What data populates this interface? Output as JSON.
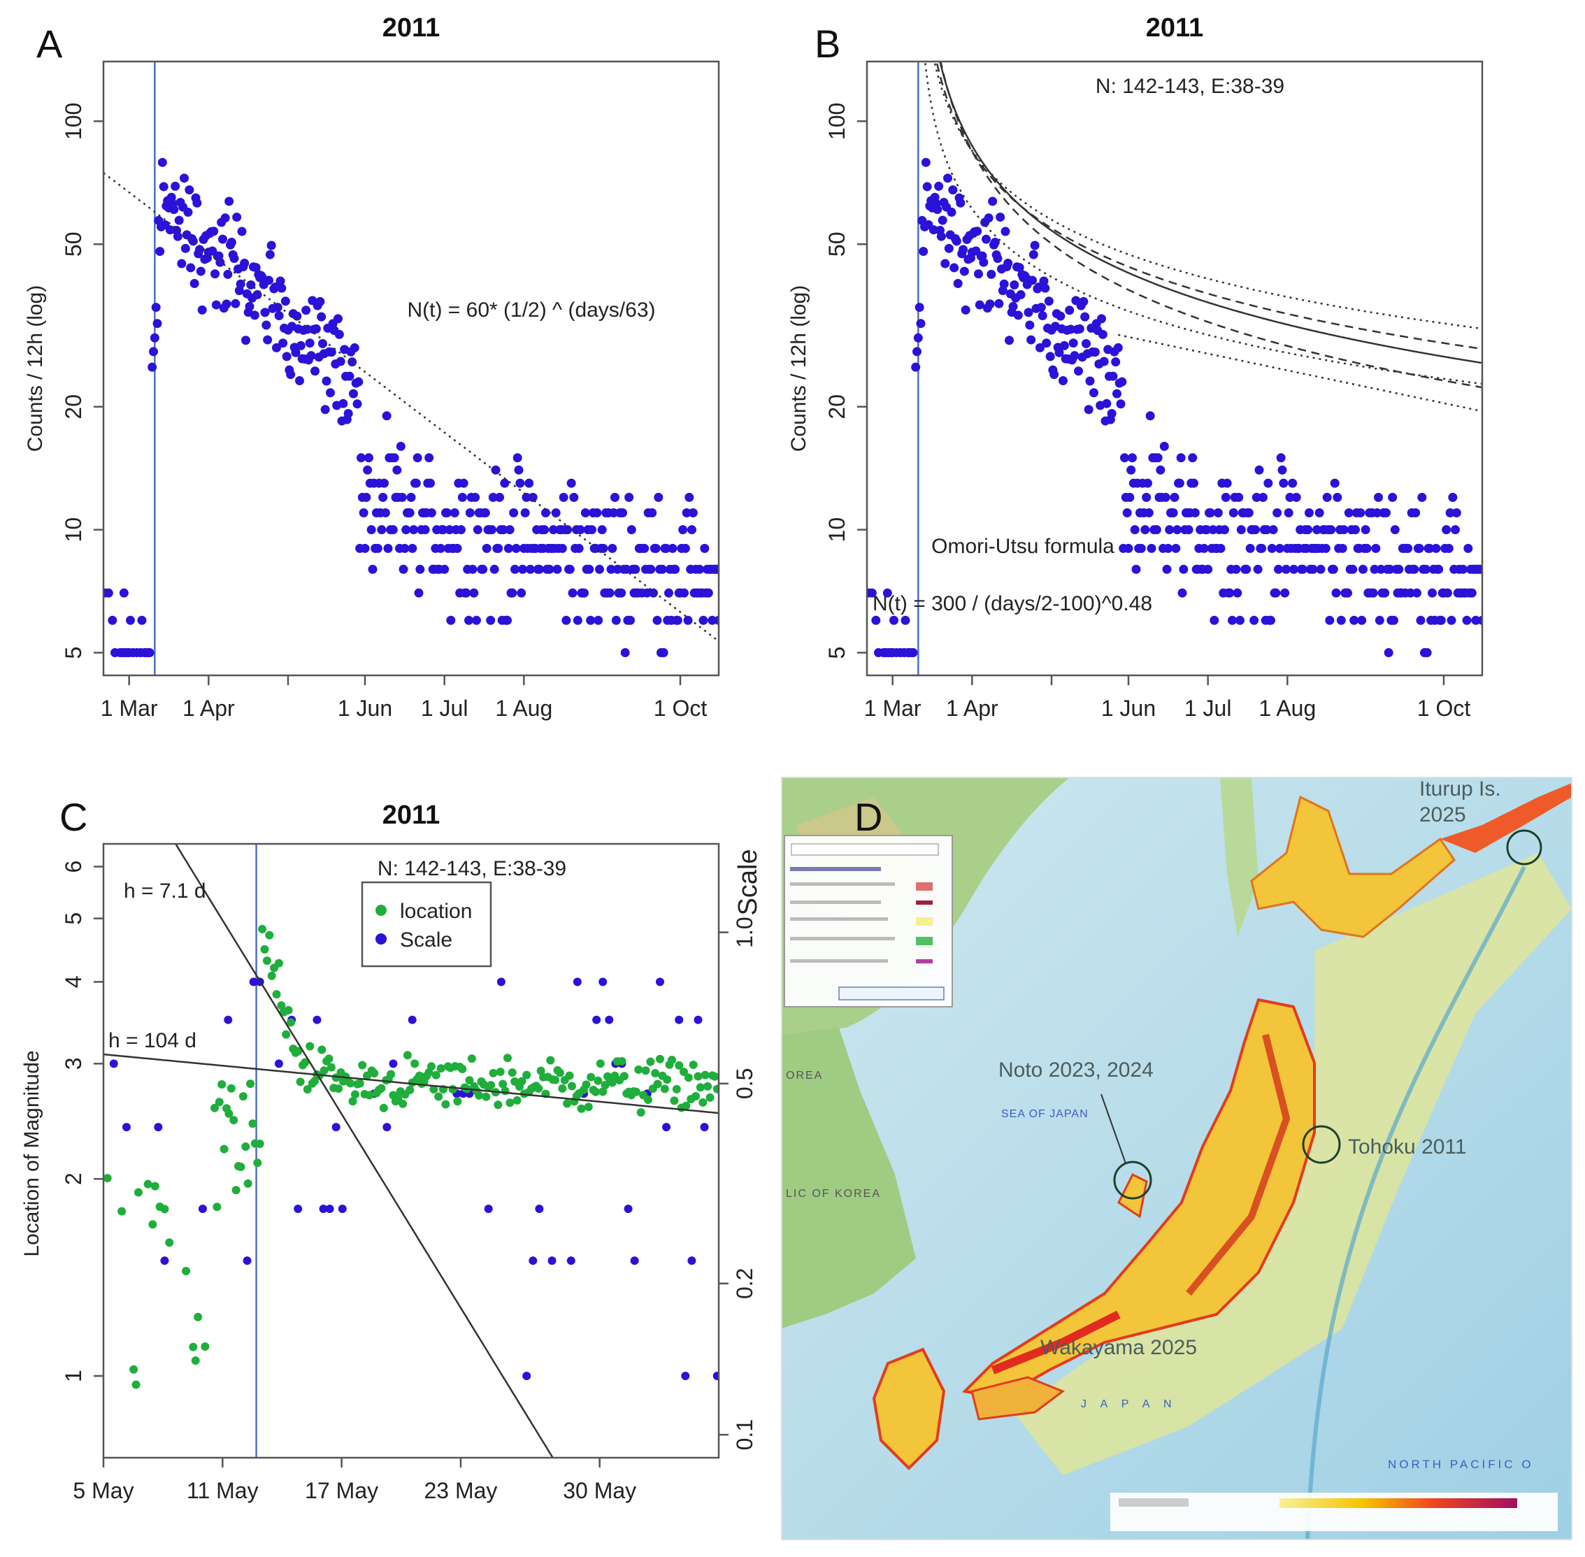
{
  "figure": {
    "panel_labels": [
      "A",
      "B",
      "C",
      "D"
    ],
    "colors": {
      "scale_points": "#2a12d8",
      "location_points": "#1fae3b",
      "marker_line": "#4a6fc4",
      "fit_line": "#333333"
    }
  },
  "chart_data": [
    {
      "id": "A",
      "type": "scatter",
      "title": "2011",
      "ylabel": "Counts / 12h (log)",
      "yscale": "log",
      "ylim": [
        4.4,
        140
      ],
      "yticks": [
        "5",
        "10",
        "20",
        "50",
        "100"
      ],
      "xlim": [
        40,
        280
      ],
      "xticks": [
        {
          "day": 50,
          "label": "1 Mar"
        },
        {
          "day": 81,
          "label": "1 Apr"
        },
        {
          "day": 142,
          "label": "1 Jun"
        },
        {
          "day": 173,
          "label": "1 Jul"
        },
        {
          "day": 204,
          "label": "1 Aug"
        },
        {
          "day": 265,
          "label": "1 Oct"
        }
      ],
      "event_day": 60,
      "annotation": "N(t) = 60* (1/2) ^ (days/63)",
      "fit": {
        "kind": "halflife",
        "n0": 60,
        "half_life_days": 63,
        "start_day": 60
      },
      "series": [
        {
          "name": "counts per 12h",
          "model": "decay-with-noise",
          "start_day": 40,
          "end_day": 280,
          "step_days": 0.5
        }
      ]
    },
    {
      "id": "B",
      "type": "scatter",
      "title": "2011",
      "subtitle": "N: 142-143, E:38-39",
      "ylabel": "Counts / 12h (log)",
      "yscale": "log",
      "ylim": [
        4.4,
        140
      ],
      "yticks": [
        "5",
        "10",
        "20",
        "50",
        "100"
      ],
      "xlim": [
        40,
        280
      ],
      "xticks": [
        {
          "day": 50,
          "label": "1 Mar"
        },
        {
          "day": 81,
          "label": "1 Apr"
        },
        {
          "day": 142,
          "label": "1 Jun"
        },
        {
          "day": 173,
          "label": "1 Jul"
        },
        {
          "day": 204,
          "label": "1 Aug"
        },
        {
          "day": 265,
          "label": "1 Oct"
        }
      ],
      "event_day": 60,
      "annotations": [
        "Omori-Utsu formula",
        "N(t) = 300 / (days/2-100)^0.48"
      ],
      "curves": [
        {
          "style": "solid",
          "k": 24,
          "c": 2,
          "p": 0.55
        },
        {
          "style": "dashed",
          "k": 30,
          "c": 1.5,
          "p": 0.6
        },
        {
          "style": "dashed",
          "k": 18,
          "c": 2.5,
          "p": 0.5
        },
        {
          "style": "dotted",
          "k": 14,
          "c": 3,
          "p": 0.45
        },
        {
          "style": "dotted",
          "k": 10,
          "c": 3,
          "p": 0.45
        },
        {
          "style": "dotted-flat",
          "from": [
            138,
            30
          ],
          "to": [
            280,
            19.5
          ]
        }
      ]
    },
    {
      "id": "C",
      "type": "scatter",
      "title": "2011",
      "subtitle": "N: 142-143, E:38-39",
      "ylabel_left": "Location of Magnitude",
      "ylabel_right": "Scale",
      "yscale": "log",
      "ylim_left": [
        0.75,
        6.5
      ],
      "yticks_left": [
        "1",
        "2",
        "3",
        "4",
        "5",
        "6"
      ],
      "ylim_right": [
        0.09,
        1.5
      ],
      "yticks_right": [
        "0.1",
        "0.2",
        "0.5",
        "1.0"
      ],
      "xlim": [
        0,
        31
      ],
      "xticks": [
        {
          "day": 0,
          "label": "5 May"
        },
        {
          "day": 6,
          "label": "11 May"
        },
        {
          "day": 12,
          "label": "17 May"
        },
        {
          "day": 18,
          "label": "23 May"
        },
        {
          "day": 25,
          "label": "30 May"
        }
      ],
      "event_day": 7.7,
      "legend": [
        "location",
        "Scale"
      ],
      "legend_position": "top-center",
      "fit_lines": [
        {
          "label": "h = 7.1 d",
          "half_life_days": 7.1
        },
        {
          "label": "h = 104 d",
          "half_life_days": 104
        }
      ],
      "series": [
        {
          "name": "location",
          "model": "rise-then-plateau",
          "plateau": 2.8
        },
        {
          "name": "Scale",
          "model": "discrete-levels"
        }
      ]
    }
  ],
  "map": {
    "id": "D",
    "labels": {
      "iturup": "Iturup Is.",
      "iturup_year": "2025",
      "noto": "Noto 2023, 2024",
      "tohoku": "Tohoku 2011",
      "wakayama": "Wakayama 2025",
      "sea_of_japan": "SEA OF JAPAN",
      "korea": "OREA",
      "rep_korea": "LIC OF KOREA",
      "japan": "J A P A N",
      "pacific": "NORTH PACIFIC O"
    }
  }
}
